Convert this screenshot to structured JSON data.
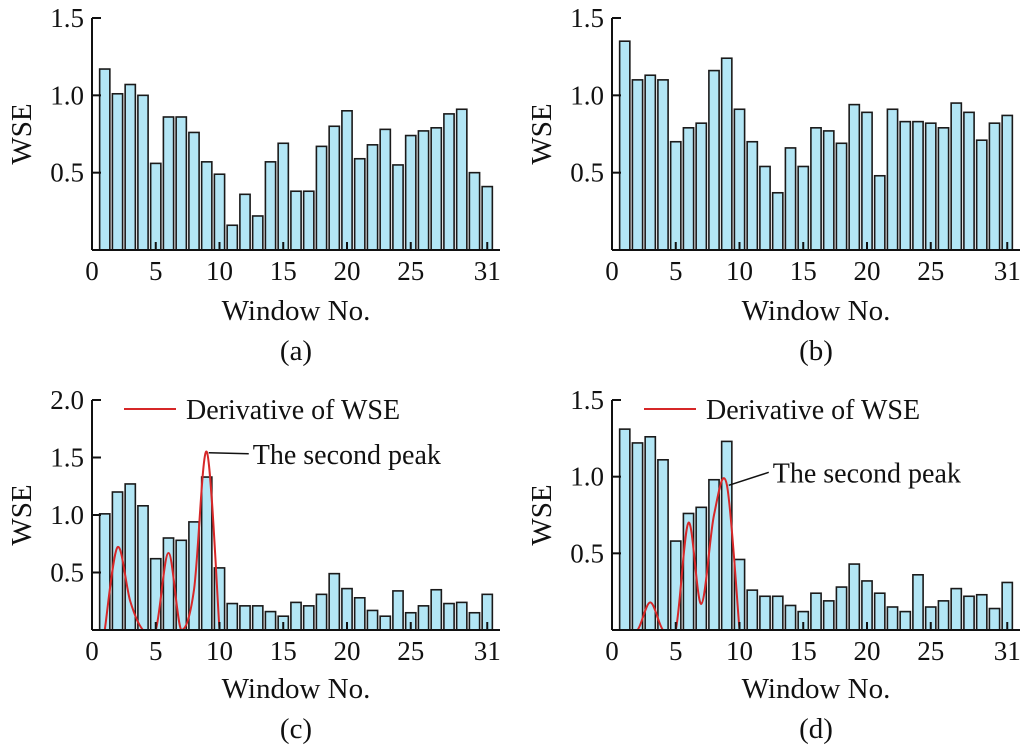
{
  "colors": {
    "bar_fill": "#b3e6f5",
    "bar_stroke": "#1a1a1a",
    "derivative_line": "#d62728",
    "axis": "#111111"
  },
  "chart_data": [
    {
      "panel": "(a)",
      "type": "bar",
      "xlabel": "Window No.",
      "ylabel": "WSE",
      "x": [
        1,
        2,
        3,
        4,
        5,
        6,
        7,
        8,
        9,
        10,
        11,
        12,
        13,
        14,
        15,
        16,
        17,
        18,
        19,
        20,
        21,
        22,
        23,
        24,
        25,
        26,
        27,
        28,
        29,
        30,
        31
      ],
      "values": [
        1.17,
        1.01,
        1.07,
        1.0,
        0.56,
        0.86,
        0.86,
        0.76,
        0.57,
        0.49,
        0.16,
        0.36,
        0.22,
        0.57,
        0.69,
        0.38,
        0.38,
        0.67,
        0.8,
        0.9,
        0.59,
        0.68,
        0.78,
        0.55,
        0.74,
        0.77,
        0.79,
        0.88,
        0.91,
        0.5,
        0.41
      ],
      "xlim": [
        0,
        32
      ],
      "ylim": [
        0,
        1.5
      ],
      "xticks": [
        0,
        5,
        10,
        15,
        20,
        25,
        31
      ],
      "yticks": [
        0.5,
        1.0,
        1.5
      ],
      "ytick_labels": [
        "0.5",
        "1.0",
        "1.5"
      ]
    },
    {
      "panel": "(b)",
      "type": "bar",
      "xlabel": "Window No.",
      "ylabel": "WSE",
      "x": [
        1,
        2,
        3,
        4,
        5,
        6,
        7,
        8,
        9,
        10,
        11,
        12,
        13,
        14,
        15,
        16,
        17,
        18,
        19,
        20,
        21,
        22,
        23,
        24,
        25,
        26,
        27,
        28,
        29,
        30,
        31
      ],
      "values": [
        1.35,
        1.1,
        1.13,
        1.1,
        0.7,
        0.79,
        0.82,
        1.16,
        1.24,
        0.91,
        0.7,
        0.54,
        0.37,
        0.66,
        0.54,
        0.79,
        0.77,
        0.69,
        0.94,
        0.89,
        0.48,
        0.91,
        0.83,
        0.83,
        0.82,
        0.79,
        0.95,
        0.89,
        0.71,
        0.82,
        0.87
      ],
      "xlim": [
        0,
        32
      ],
      "ylim": [
        0,
        1.5
      ],
      "xticks": [
        0,
        5,
        10,
        15,
        20,
        25,
        31
      ],
      "yticks": [
        0.5,
        1.0,
        1.5
      ],
      "ytick_labels": [
        "0.5",
        "1.0",
        "1.5"
      ]
    },
    {
      "panel": "(c)",
      "type": "bar",
      "xlabel": "Window No.",
      "ylabel": "WSE",
      "x": [
        1,
        2,
        3,
        4,
        5,
        6,
        7,
        8,
        9,
        10,
        11,
        12,
        13,
        14,
        15,
        16,
        17,
        18,
        19,
        20,
        21,
        22,
        23,
        24,
        25,
        26,
        27,
        28,
        29,
        30,
        31
      ],
      "values": [
        1.01,
        1.2,
        1.27,
        1.08,
        0.62,
        0.8,
        0.78,
        0.94,
        1.33,
        0.54,
        0.23,
        0.21,
        0.21,
        0.16,
        0.12,
        0.24,
        0.21,
        0.31,
        0.49,
        0.36,
        0.28,
        0.17,
        0.12,
        0.34,
        0.15,
        0.21,
        0.35,
        0.23,
        0.24,
        0.15,
        0.31
      ],
      "xlim": [
        0,
        32
      ],
      "ylim": [
        0,
        2.0
      ],
      "xticks": [
        0,
        5,
        10,
        15,
        20,
        25,
        31
      ],
      "yticks": [
        0.5,
        1.0,
        1.5,
        2.0
      ],
      "ytick_labels": [
        "0.5",
        "1.0",
        "1.5",
        "2.0"
      ],
      "line": {
        "name": "Derivative of WSE",
        "x": [
          1,
          2,
          3,
          4,
          5,
          6,
          7,
          8,
          9,
          10
        ],
        "y": [
          0.0,
          0.72,
          0.25,
          0.0,
          0.0,
          0.67,
          0.0,
          0.35,
          1.55,
          0.0
        ]
      },
      "legend": "Derivative of WSE",
      "annotation": {
        "text": "The second peak",
        "x": 9,
        "y": 1.55
      }
    },
    {
      "panel": "(d)",
      "type": "bar",
      "xlabel": "Window No.",
      "ylabel": "WSE",
      "x": [
        1,
        2,
        3,
        4,
        5,
        6,
        7,
        8,
        9,
        10,
        11,
        12,
        13,
        14,
        15,
        16,
        17,
        18,
        19,
        20,
        21,
        22,
        23,
        24,
        25,
        26,
        27,
        28,
        29,
        30,
        31
      ],
      "values": [
        1.31,
        1.22,
        1.26,
        1.11,
        0.58,
        0.76,
        0.8,
        0.98,
        1.23,
        0.46,
        0.26,
        0.22,
        0.22,
        0.16,
        0.12,
        0.24,
        0.19,
        0.28,
        0.43,
        0.32,
        0.24,
        0.15,
        0.12,
        0.36,
        0.15,
        0.19,
        0.27,
        0.22,
        0.23,
        0.14,
        0.31
      ],
      "xlim": [
        0,
        32
      ],
      "ylim": [
        0,
        1.5
      ],
      "xticks": [
        0,
        5,
        10,
        15,
        20,
        25,
        31
      ],
      "yticks": [
        0.5,
        1.0,
        1.5
      ],
      "ytick_labels": [
        "0.5",
        "1.0",
        "1.5"
      ],
      "line": {
        "name": "Derivative of WSE",
        "x": [
          1,
          2,
          3,
          4,
          5,
          6,
          7,
          8,
          9,
          10
        ],
        "y": [
          0.0,
          0.0,
          0.18,
          0.0,
          0.0,
          0.7,
          0.17,
          0.75,
          0.95,
          0.0
        ]
      },
      "legend": "Derivative of WSE",
      "annotation": {
        "text": "The second peak",
        "x": 9,
        "y": 0.95
      }
    }
  ]
}
